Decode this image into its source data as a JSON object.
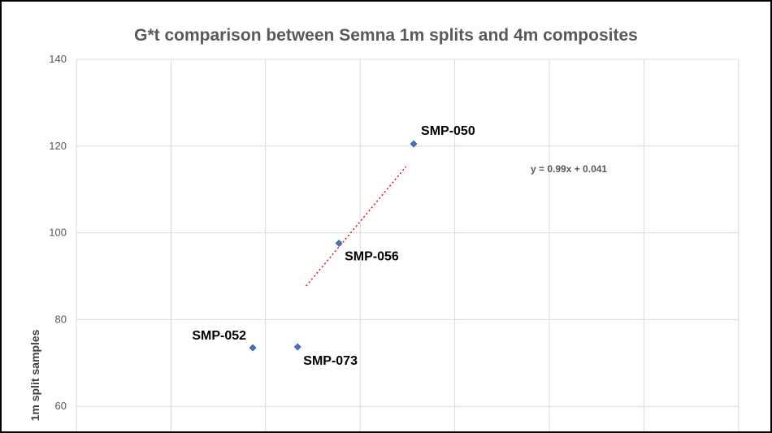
{
  "chart_data": {
    "type": "scatter",
    "title": "G*t comparison between Semna 1m splits and 4m composites",
    "xlabel": "",
    "ylabel": "1m split samples",
    "ylim": [
      40,
      140
    ],
    "yticks": [
      60,
      80,
      100,
      120,
      140
    ],
    "grid": true,
    "marker_color": "#4472C4",
    "trendline_color": "#FF0000",
    "points": [
      {
        "label": "SMP-050",
        "x": 118.5,
        "y": 120.5
      },
      {
        "label": "SMP-056",
        "x": 97.7,
        "y": 97.6
      },
      {
        "label": "SMP-052",
        "x": 73.7,
        "y": 73.5
      },
      {
        "label": "SMP-073",
        "x": 86.2,
        "y": 73.7
      }
    ],
    "trendline": {
      "slope": 0.99,
      "intercept": 0.041,
      "equation": "y = 0.99x + 0.041"
    }
  }
}
